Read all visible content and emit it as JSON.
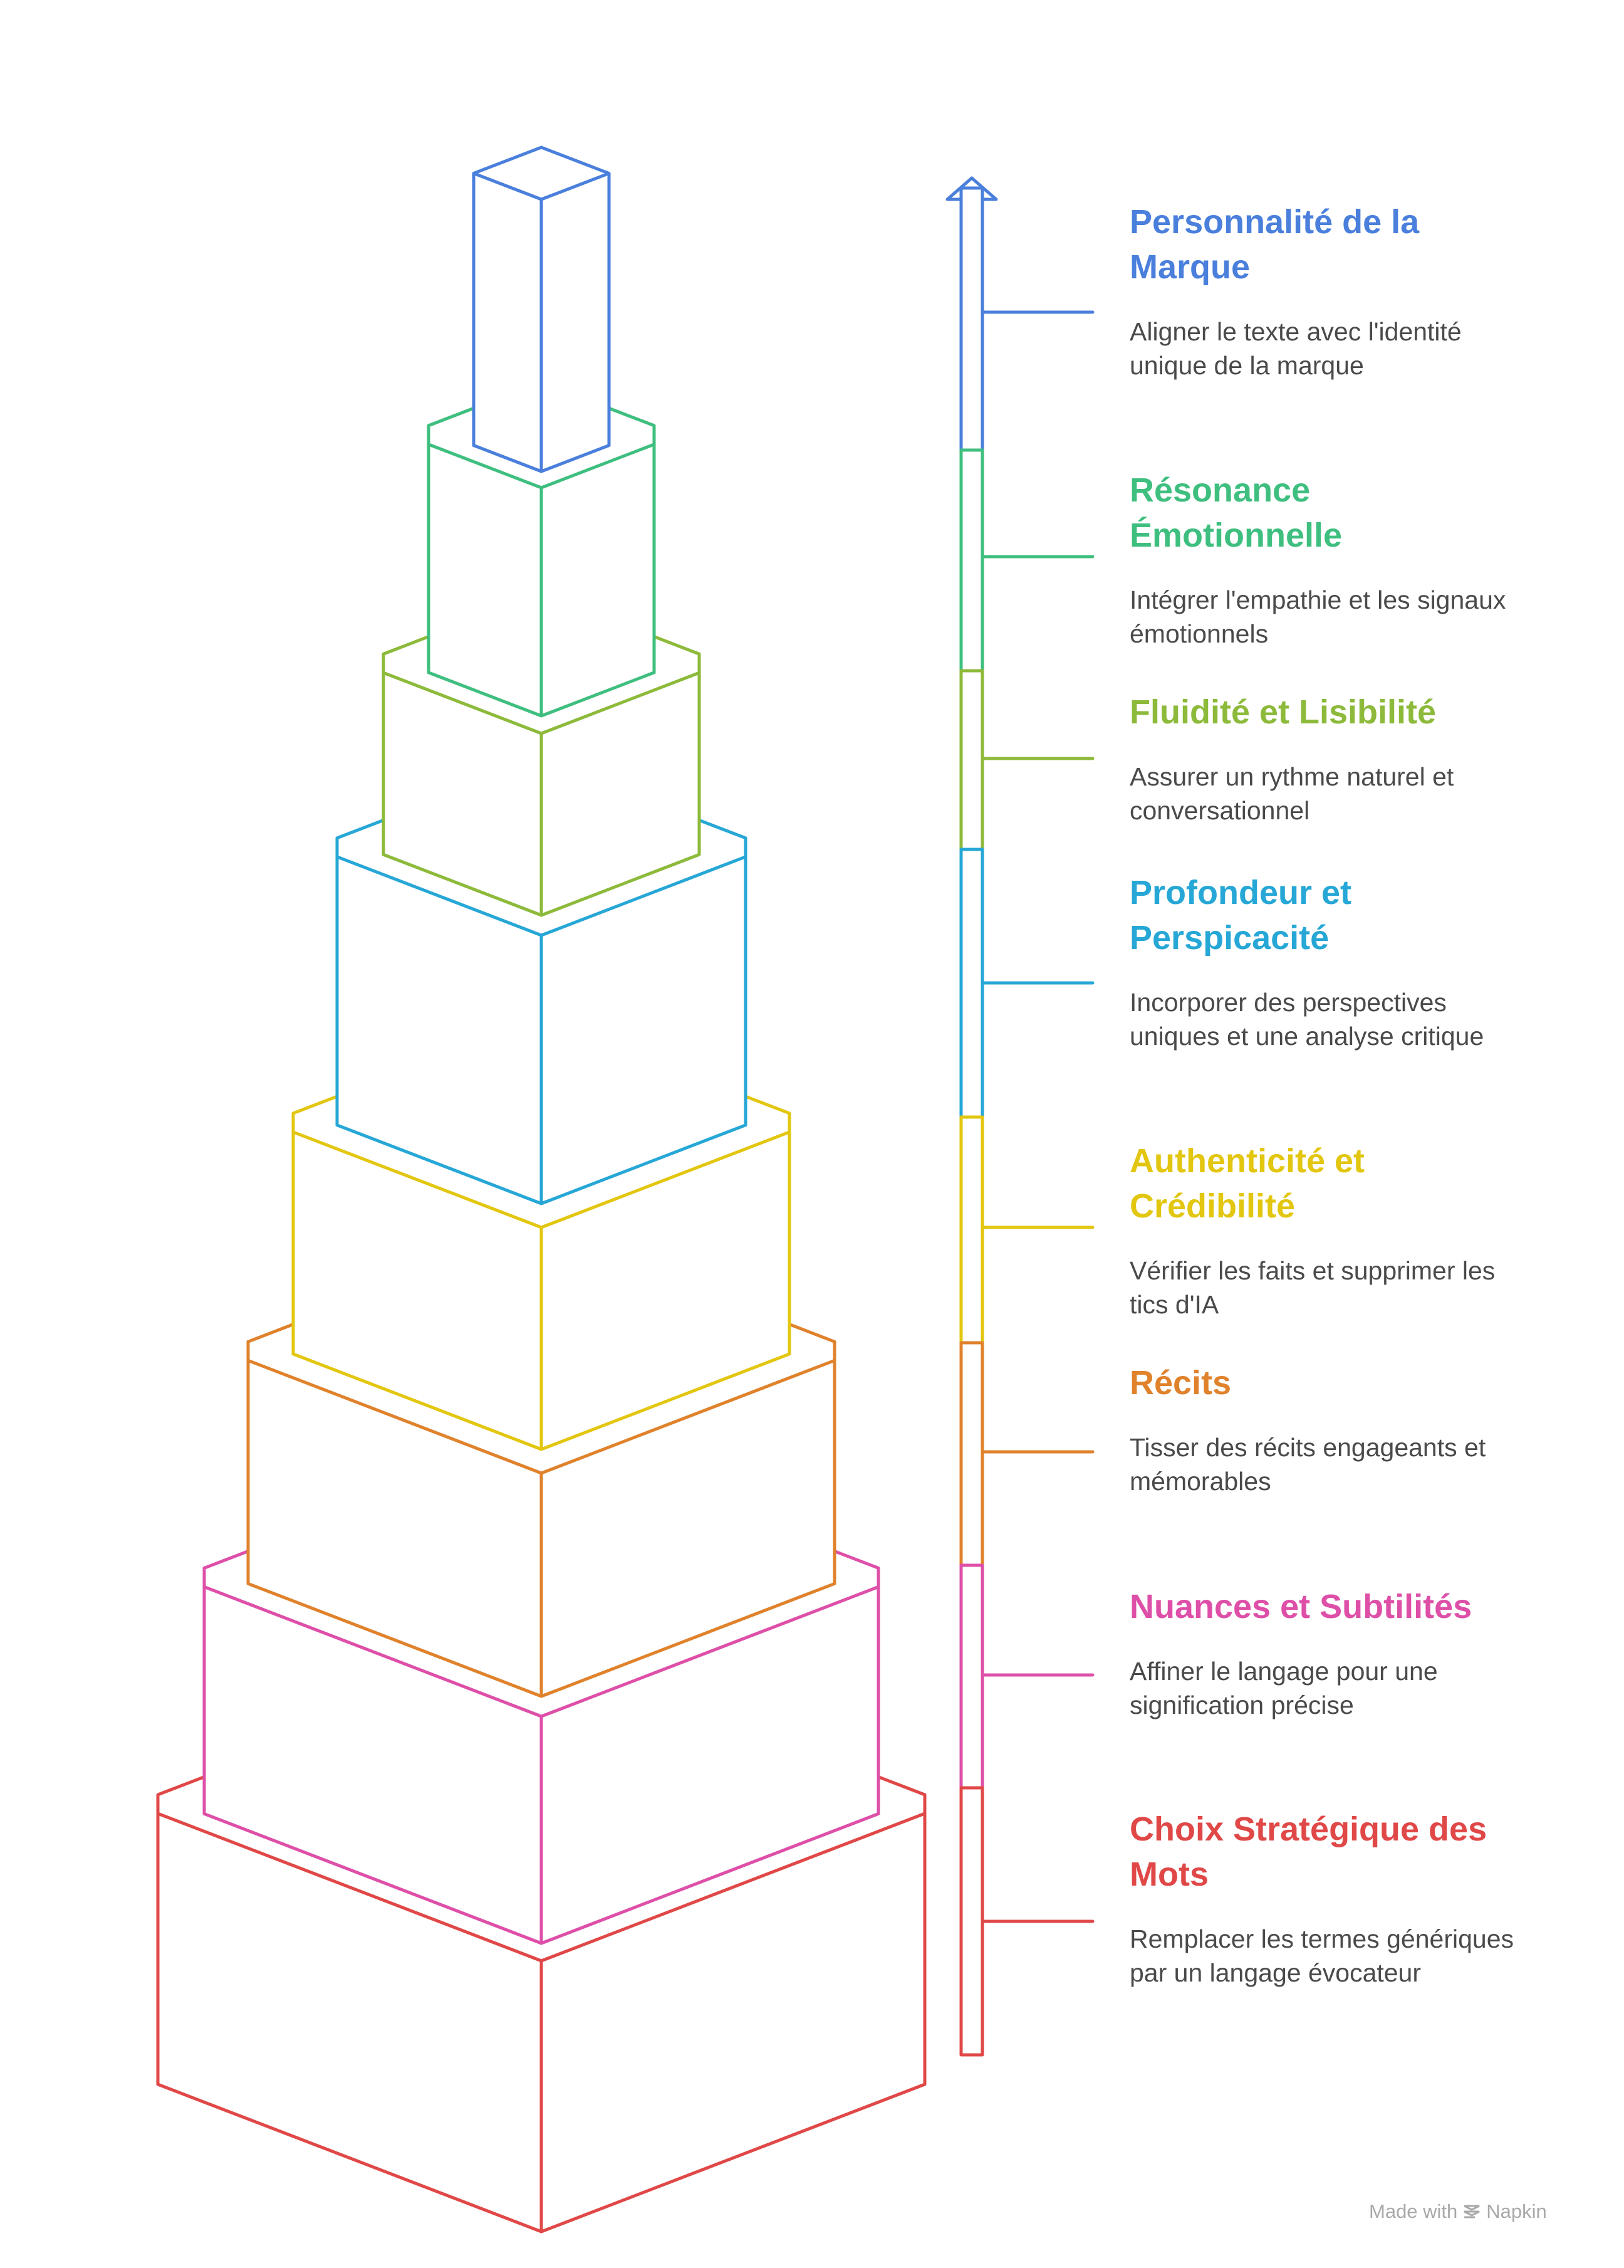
{
  "levels": [
    {
      "title": "Personnalité de la Marque",
      "description": "Aligner le texte avec l'identité unique de la marque",
      "color": "#4a7fdc"
    },
    {
      "title": "Résonance Émotionnelle",
      "description": "Intégrer l'empathie et les signaux émotionnels",
      "color": "#3fbf7f"
    },
    {
      "title": "Fluidité et Lisibilité",
      "description": "Assurer un rythme naturel et conversationnel",
      "color": "#8dba3a"
    },
    {
      "title": "Profondeur et Perspicacité",
      "description": "Incorporer des perspectives uniques et une analyse critique",
      "color": "#26a7d6"
    },
    {
      "title": "Authenticité et Crédibilité",
      "description": "Vérifier les faits et supprimer les tics d'IA",
      "color": "#e2c60f"
    },
    {
      "title": "Récits",
      "description": "Tisser des récits engageants et mémorables",
      "color": "#e0822c"
    },
    {
      "title": "Nuances et Subtilités",
      "description": "Affiner le langage pour une signification précise",
      "color": "#de4fa8"
    },
    {
      "title": "Choix Stratégique des Mots",
      "description": "Remplacer les termes génériques par un langage évocateur",
      "color": "#e04848"
    }
  ],
  "footer": {
    "made_with": "Made with",
    "brand": "Napkin"
  }
}
